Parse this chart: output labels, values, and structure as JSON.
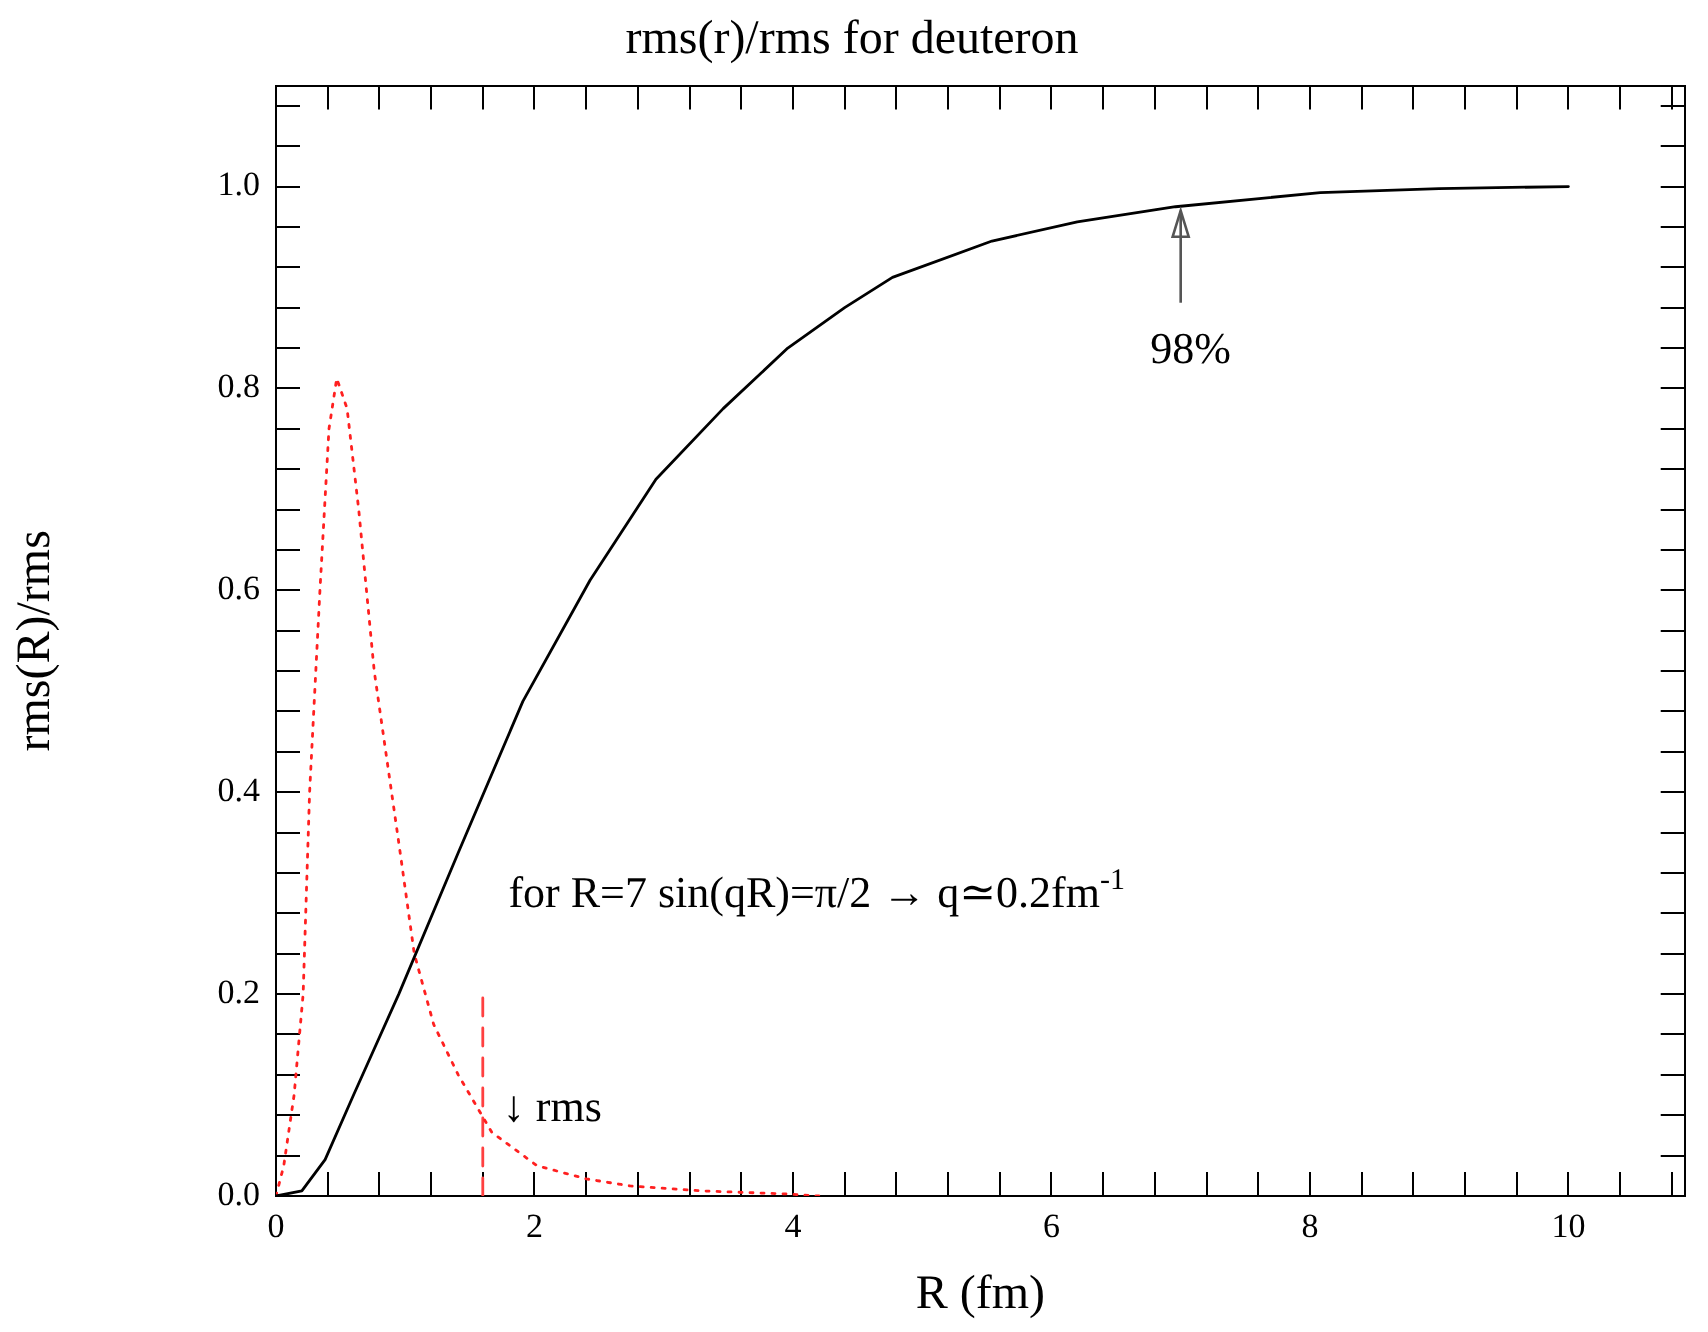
{
  "chart_data": {
    "type": "line",
    "title": "rms(r)/rms for deuteron",
    "xlabel": "R (fm)",
    "ylabel": "rms(R)/rms",
    "xlim": [
      0,
      10.9
    ],
    "ylim": [
      0,
      1.1
    ],
    "xticks": [
      0,
      {
        "value": 0.4,
        "label": null
      },
      {
        "value": 0.8,
        "label": null
      },
      {
        "value": 1.2,
        "label": null
      },
      {
        "value": 1.6,
        "label": null
      },
      2,
      {
        "value": 2.4,
        "label": null
      },
      {
        "value": 2.8,
        "label": null
      },
      {
        "value": 3.2,
        "label": null
      },
      {
        "value": 3.6,
        "label": null
      },
      4,
      {
        "value": 4.4,
        "label": null
      },
      {
        "value": 4.8,
        "label": null
      },
      {
        "value": 5.2,
        "label": null
      },
      {
        "value": 5.6,
        "label": null
      },
      6,
      {
        "value": 6.4,
        "label": null
      },
      {
        "value": 6.8,
        "label": null
      },
      {
        "value": 7.2,
        "label": null
      },
      {
        "value": 7.6,
        "label": null
      },
      8,
      {
        "value": 8.4,
        "label": null
      },
      {
        "value": 8.8,
        "label": null
      },
      {
        "value": 9.2,
        "label": null
      },
      {
        "value": 9.6,
        "label": null
      },
      10,
      {
        "value": 10.4,
        "label": null
      },
      {
        "value": 10.8,
        "label": null
      }
    ],
    "yticks": [
      {
        "value": 0,
        "label": "0.0"
      },
      {
        "value": 0.04,
        "label": null
      },
      {
        "value": 0.08,
        "label": null
      },
      {
        "value": 0.12,
        "label": null
      },
      {
        "value": 0.16,
        "label": null
      },
      {
        "value": 0.2,
        "label": "0.2"
      },
      {
        "value": 0.24,
        "label": null
      },
      {
        "value": 0.28,
        "label": null
      },
      {
        "value": 0.32,
        "label": null
      },
      {
        "value": 0.36,
        "label": null
      },
      {
        "value": 0.4,
        "label": "0.4"
      },
      {
        "value": 0.44,
        "label": null
      },
      {
        "value": 0.48,
        "label": null
      },
      {
        "value": 0.52,
        "label": null
      },
      {
        "value": 0.56,
        "label": null
      },
      {
        "value": 0.6,
        "label": "0.6"
      },
      {
        "value": 0.64,
        "label": null
      },
      {
        "value": 0.68,
        "label": null
      },
      {
        "value": 0.72,
        "label": null
      },
      {
        "value": 0.76,
        "label": null
      },
      {
        "value": 0.8,
        "label": "0.8"
      },
      {
        "value": 0.84,
        "label": null
      },
      {
        "value": 0.88,
        "label": null
      },
      {
        "value": 0.92,
        "label": null
      },
      {
        "value": 0.96,
        "label": null
      },
      {
        "value": 1,
        "label": "1.0"
      },
      {
        "value": 1.04,
        "label": null
      },
      {
        "value": 1.08,
        "label": null
      }
    ],
    "grid": false,
    "legend": false,
    "marker": "none",
    "series": [
      {
        "color": "#000000",
        "line_style": "solid",
        "x": [
          0,
          0.2,
          0.38,
          0.6,
          0.95,
          1.41,
          1.91,
          2.43,
          2.94,
          3.46,
          3.96,
          4.4,
          4.77,
          5.54,
          6.2,
          6.96,
          8.08,
          9,
          10
        ],
        "values": [
          0,
          0.005,
          0.036,
          0.1,
          0.2,
          0.34,
          0.49,
          0.61,
          0.71,
          0.78,
          0.84,
          0.88,
          0.91,
          0.946,
          0.965,
          0.98,
          0.994,
          0.998,
          1.0
        ]
      },
      {
        "color": "#ff2020",
        "line_style": "dotted",
        "x": [
          0,
          0.06,
          0.14,
          0.21,
          0.26,
          0.34,
          0.41,
          0.47,
          0.55,
          0.64,
          0.76,
          0.95,
          1.07,
          1.22,
          1.41,
          1.67,
          2.02,
          2.4,
          2.74,
          3.3,
          3.96,
          4.2
        ],
        "values": [
          0,
          0.03,
          0.1,
          0.2,
          0.4,
          0.6,
          0.76,
          0.81,
          0.78,
          0.68,
          0.52,
          0.35,
          0.24,
          0.17,
          0.12,
          0.063,
          0.03,
          0.017,
          0.01,
          0.005,
          0.002,
          0
        ]
      },
      {
        "color": "#ff4040",
        "line_style": "dashed",
        "x": [
          1.6,
          1.6
        ],
        "values": [
          0,
          0.2
        ]
      }
    ],
    "annotations": [
      {
        "text": "98%",
        "x": 7,
        "y": 0.98
      },
      {
        "text": "↓ rms",
        "x": 1.6,
        "y": 0.09
      },
      "for R=7 sin(qR)=π/2 → q≃0.2fm$^{-1}$"
    ]
  }
}
